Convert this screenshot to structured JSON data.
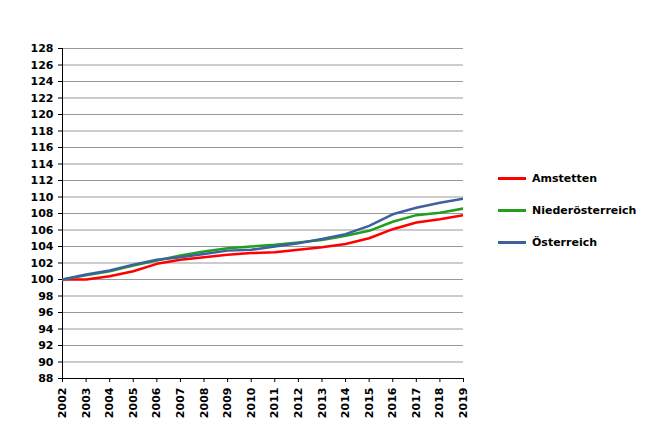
{
  "chart_data": {
    "type": "line",
    "x": [
      2002,
      2003,
      2004,
      2005,
      2006,
      2007,
      2008,
      2009,
      2010,
      2011,
      2012,
      2013,
      2014,
      2015,
      2016,
      2017,
      2018,
      2019
    ],
    "series": [
      {
        "name": "Amstetten",
        "color": "#ff0000",
        "values": [
          100,
          100.0,
          100.4,
          101.0,
          101.9,
          102.4,
          102.7,
          103.0,
          103.2,
          103.3,
          103.6,
          103.9,
          104.3,
          105.0,
          106.1,
          106.9,
          107.3,
          107.8
        ]
      },
      {
        "name": "Niederösterreich",
        "color": "#1f9e1f",
        "values": [
          100,
          100.5,
          101.0,
          101.7,
          102.3,
          102.9,
          103.4,
          103.8,
          104.0,
          104.2,
          104.5,
          104.8,
          105.3,
          105.9,
          107.0,
          107.8,
          108.1,
          108.6
        ]
      },
      {
        "name": "Österreich",
        "color": "#3f5f9f",
        "values": [
          100,
          100.6,
          101.1,
          101.8,
          102.4,
          102.7,
          103.1,
          103.5,
          103.6,
          104.0,
          104.4,
          104.9,
          105.5,
          106.5,
          107.9,
          108.7,
          109.3,
          109.8
        ]
      }
    ],
    "xlim": [
      2002,
      2019
    ],
    "xticks": [
      2002,
      2003,
      2004,
      2005,
      2006,
      2007,
      2008,
      2009,
      2010,
      2011,
      2012,
      2013,
      2014,
      2015,
      2016,
      2017,
      2018,
      2019
    ],
    "ylim": [
      88,
      128
    ],
    "yticks": [
      88,
      90,
      92,
      94,
      96,
      98,
      100,
      102,
      104,
      106,
      108,
      110,
      112,
      114,
      116,
      118,
      120,
      122,
      124,
      126,
      128
    ],
    "grid": true,
    "legend": "right"
  }
}
